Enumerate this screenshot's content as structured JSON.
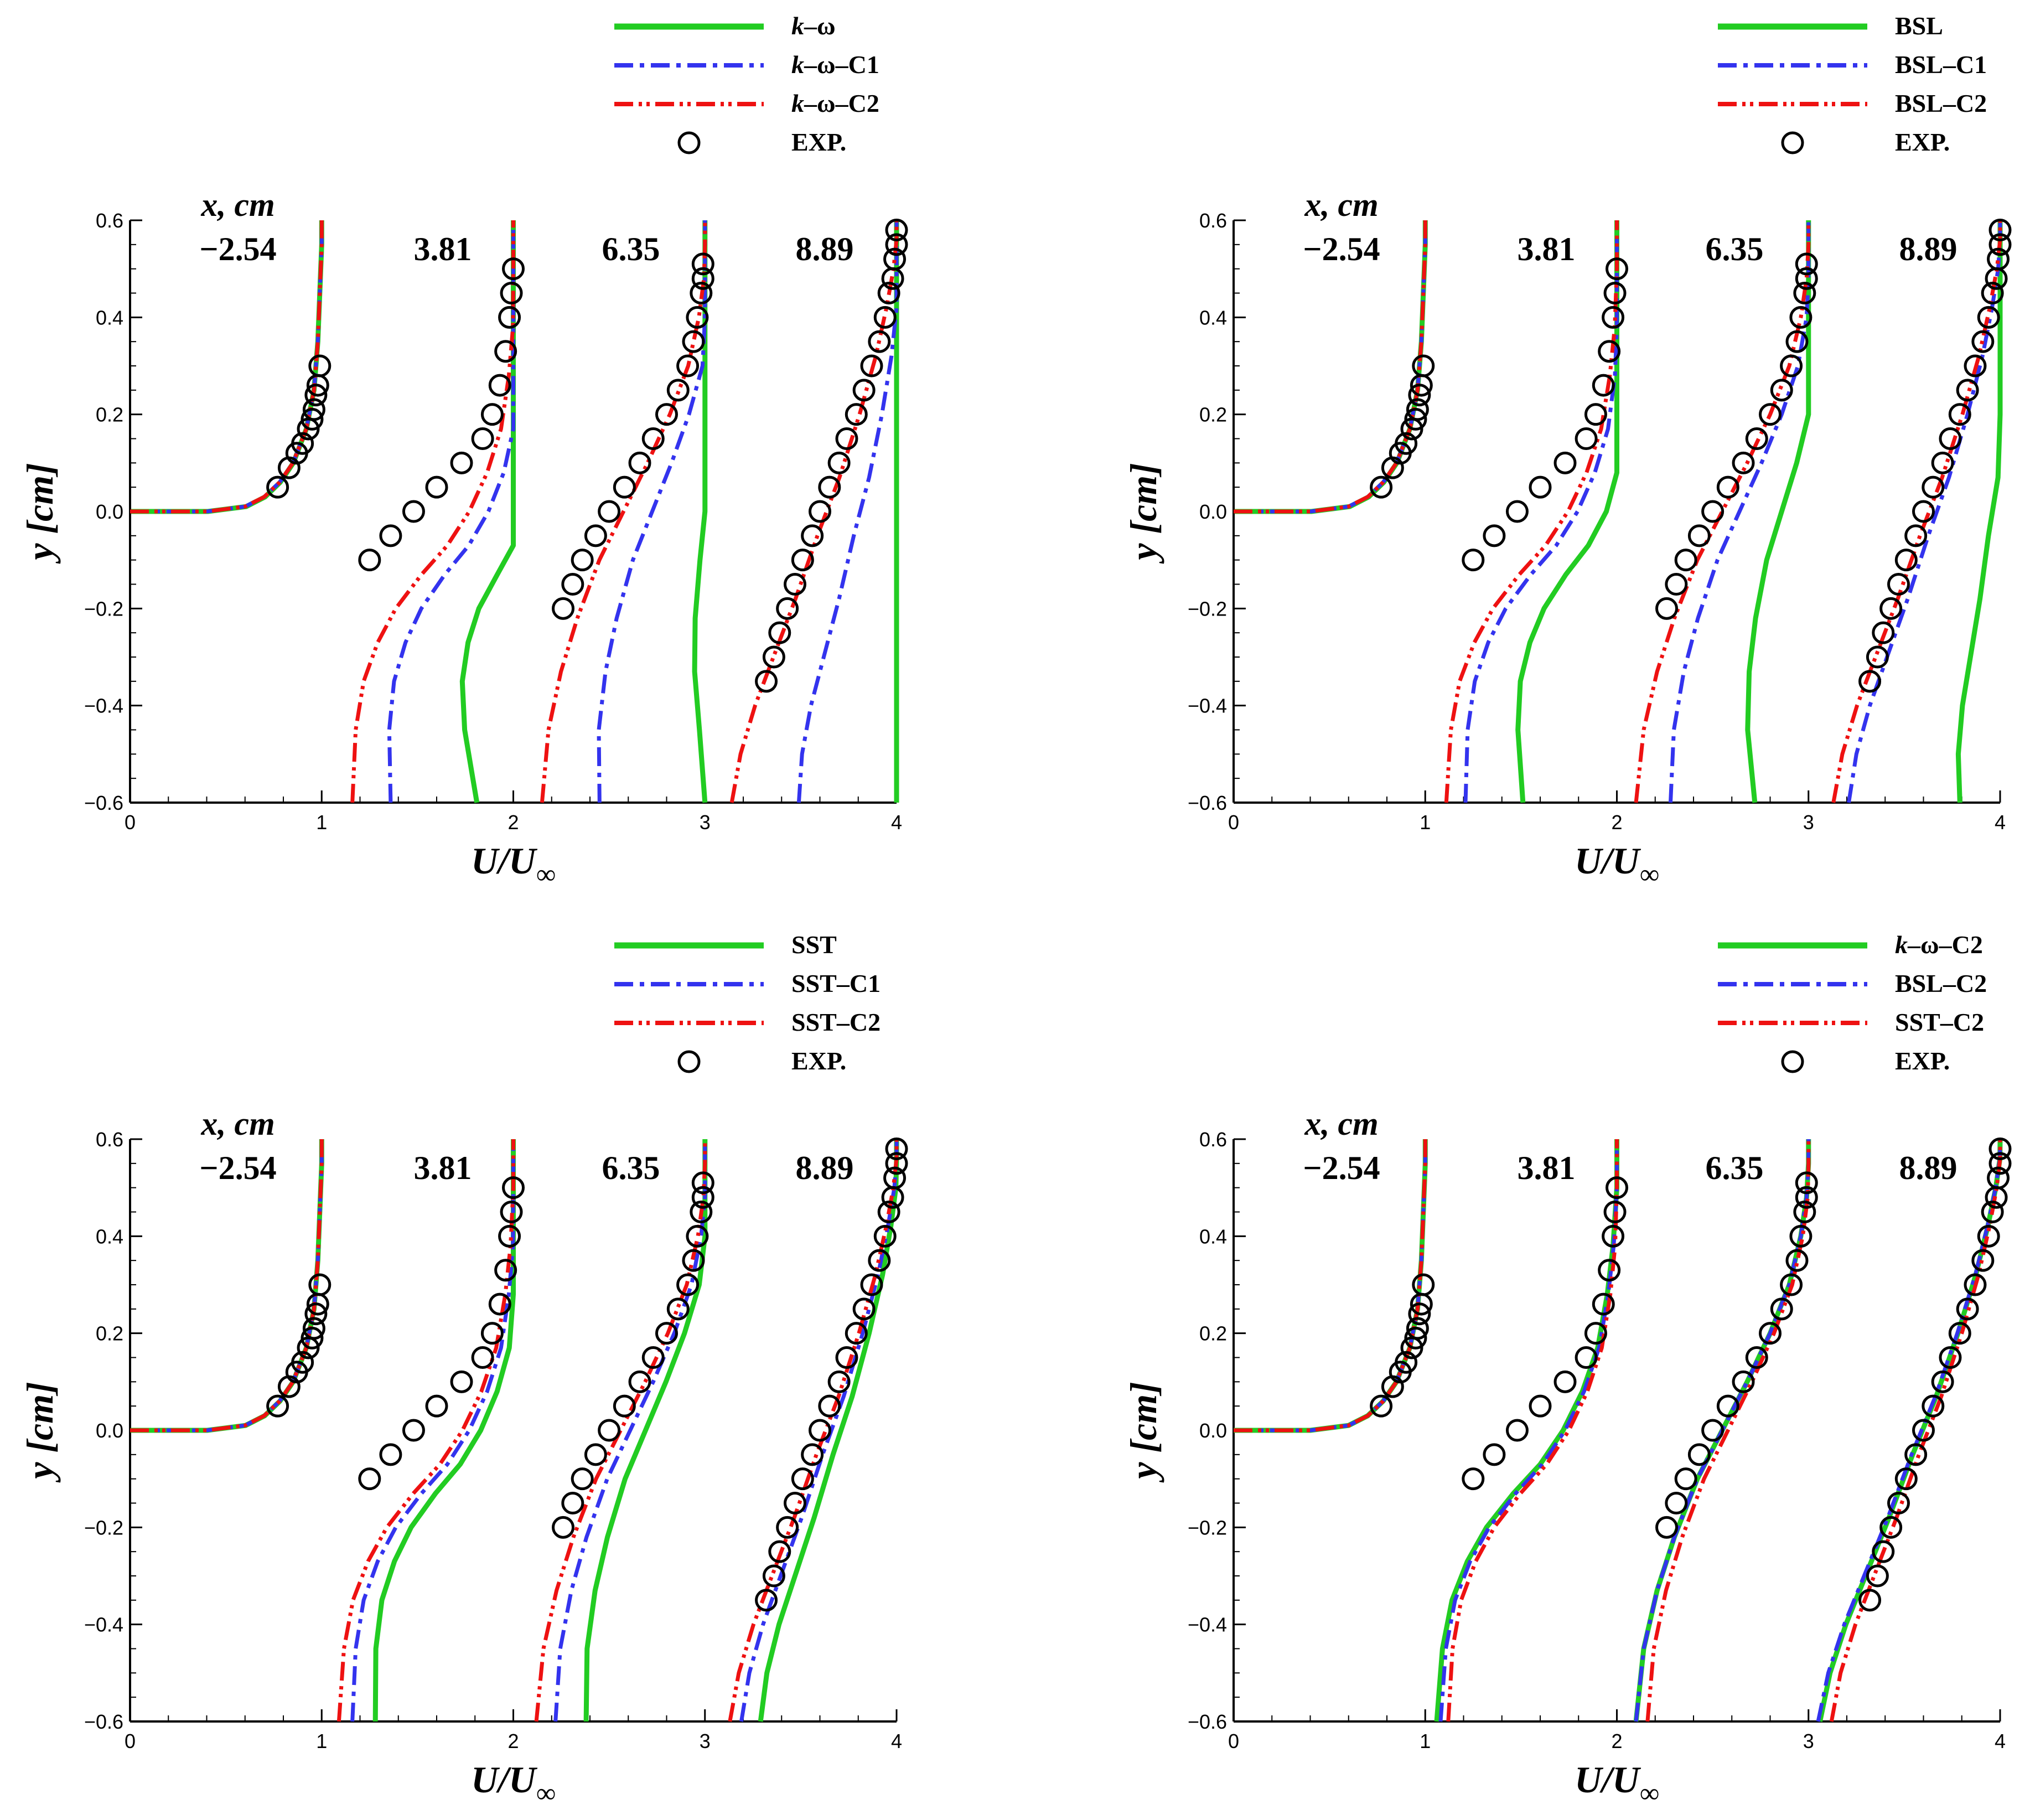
{
  "chart_data": [
    {
      "type": "line",
      "panel": "top-left",
      "legend": [
        {
          "label_main": "k",
          "label_rest": "–ω",
          "italic_prefix": true,
          "series": "green"
        },
        {
          "label_main": "k",
          "label_rest": "–ω–C1",
          "italic_prefix": true,
          "series": "blue"
        },
        {
          "label_main": "k",
          "label_rest": "–ω–C2",
          "italic_prefix": true,
          "series": "red"
        },
        {
          "label_main": "",
          "label_rest": "EXP.",
          "italic_prefix": false,
          "series": "exp"
        }
      ],
      "xlabel_main": "U/U",
      "xlabel_sub": "∞",
      "ylabel_main": "y",
      "ylabel_rest": "[cm]",
      "xlim": [
        0,
        4
      ],
      "ylim": [
        -0.6,
        0.6
      ],
      "xticks": [
        "0",
        "1",
        "2",
        "3",
        "4"
      ],
      "yticks": [
        "−0.6",
        "−0.4",
        "−0.2",
        "0.0",
        "0.2",
        "0.4",
        "0.6"
      ],
      "station_title": "x, cm",
      "stations": [
        "−2.54",
        "3.81",
        "6.35",
        "8.89"
      ],
      "series_delta": {
        "green": [
          0.02,
          0.75,
          0.95,
          0.98
        ],
        "blue": [
          0,
          0.3,
          0.35,
          0.4
        ],
        "red": [
          0,
          0.1,
          0.05,
          0.05
        ]
      }
    },
    {
      "type": "line",
      "panel": "top-right",
      "legend": [
        {
          "label_main": "",
          "label_rest": "BSL",
          "italic_prefix": false,
          "series": "green"
        },
        {
          "label_main": "",
          "label_rest": "BSL–C1",
          "italic_prefix": false,
          "series": "blue"
        },
        {
          "label_main": "",
          "label_rest": "BSL–C2",
          "italic_prefix": false,
          "series": "red"
        },
        {
          "label_main": "",
          "label_rest": "EXP.",
          "italic_prefix": false,
          "series": "exp"
        }
      ],
      "xlabel_main": "U/U",
      "xlabel_sub": "∞",
      "ylabel_main": "y",
      "ylabel_rest": "[cm]",
      "xlim": [
        0,
        4
      ],
      "ylim": [
        -0.6,
        0.6
      ],
      "xticks": [
        "0",
        "1",
        "2",
        "3",
        "4"
      ],
      "yticks": [
        "−0.6",
        "−0.4",
        "−0.2",
        "0.0",
        "0.2",
        "0.4",
        "0.6"
      ],
      "station_title": "x, cm",
      "stations": [
        "−2.54",
        "3.81",
        "6.35",
        "8.89"
      ],
      "series_delta": {
        "green": [
          0.02,
          0.45,
          0.62,
          0.7
        ],
        "blue": [
          0,
          0.15,
          0.18,
          0.12
        ],
        "red": [
          0,
          0.05,
          0.0,
          0.04
        ]
      }
    },
    {
      "type": "line",
      "panel": "bottom-left",
      "legend": [
        {
          "label_main": "",
          "label_rest": "SST",
          "italic_prefix": false,
          "series": "green"
        },
        {
          "label_main": "",
          "label_rest": "SST–C1",
          "italic_prefix": false,
          "series": "blue"
        },
        {
          "label_main": "",
          "label_rest": "SST–C2",
          "italic_prefix": false,
          "series": "red"
        },
        {
          "label_main": "",
          "label_rest": "EXP.",
          "italic_prefix": false,
          "series": "exp"
        }
      ],
      "xlabel_main": "U/U",
      "xlabel_sub": "∞",
      "ylabel_main": "y",
      "ylabel_rest": "[cm]",
      "xlim": [
        0,
        4
      ],
      "ylim": [
        -0.6,
        0.6
      ],
      "xticks": [
        "0",
        "1",
        "2",
        "3",
        "4"
      ],
      "yticks": [
        "−0.6",
        "−0.4",
        "−0.2",
        "0.0",
        "0.2",
        "0.4",
        "0.6"
      ],
      "station_title": "x, cm",
      "stations": [
        "−2.54",
        "3.81",
        "6.35",
        "8.89"
      ],
      "series_delta": {
        "green": [
          0.01,
          0.22,
          0.28,
          0.2
        ],
        "blue": [
          0,
          0.1,
          0.12,
          0.1
        ],
        "red": [
          0,
          0.03,
          0.02,
          0.04
        ]
      }
    },
    {
      "type": "line",
      "panel": "bottom-right",
      "legend": [
        {
          "label_main": "k",
          "label_rest": "–ω–C2",
          "italic_prefix": true,
          "series": "green"
        },
        {
          "label_main": "",
          "label_rest": "BSL–C2",
          "italic_prefix": false,
          "series": "blue"
        },
        {
          "label_main": "",
          "label_rest": "SST–C2",
          "italic_prefix": false,
          "series": "red"
        },
        {
          "label_main": "",
          "label_rest": "EXP.",
          "italic_prefix": false,
          "series": "exp"
        }
      ],
      "xlabel_main": "U/U",
      "xlabel_sub": "∞",
      "ylabel_main": "y",
      "ylabel_rest": "[cm]",
      "xlim": [
        0,
        4
      ],
      "ylim": [
        -0.6,
        0.6
      ],
      "xticks": [
        "0",
        "1",
        "2",
        "3",
        "4"
      ],
      "yticks": [
        "−0.6",
        "−0.4",
        "−0.2",
        "0.0",
        "0.2",
        "0.4",
        "0.6"
      ],
      "station_title": "x, cm",
      "stations": [
        "−2.54",
        "3.81",
        "6.35",
        "8.89"
      ],
      "series_delta": {
        "green": [
          0,
          0.0,
          0.0,
          -0.03
        ],
        "blue": [
          0,
          0.02,
          0.0,
          -0.04
        ],
        "red": [
          0,
          0.06,
          0.06,
          0.03
        ]
      }
    }
  ],
  "profiles": {
    "station0": {
      "x": [
        0.0,
        0.4,
        0.6,
        0.7,
        0.78,
        0.85,
        0.92,
        0.96,
        0.98,
        0.99,
        1.0,
        1.0
      ],
      "y": [
        0.0,
        0.0,
        0.01,
        0.03,
        0.06,
        0.1,
        0.17,
        0.25,
        0.35,
        0.45,
        0.55,
        0.6
      ]
    },
    "station1": {
      "x": [
        1.06,
        1.09,
        1.14,
        1.22,
        1.32,
        1.46,
        1.6,
        1.72,
        1.82,
        1.9,
        1.95,
        1.98,
        2.0,
        2.0
      ],
      "y": [
        -0.6,
        -0.45,
        -0.35,
        -0.27,
        -0.2,
        -0.13,
        -0.07,
        0.0,
        0.08,
        0.17,
        0.28,
        0.38,
        0.5,
        0.6
      ]
    },
    "station2": {
      "x": [
        2.1,
        2.14,
        2.21,
        2.3,
        2.42,
        2.55,
        2.68,
        2.8,
        2.9,
        2.96,
        2.99,
        3.0,
        3.0
      ],
      "y": [
        -0.6,
        -0.45,
        -0.33,
        -0.22,
        -0.1,
        0.0,
        0.1,
        0.2,
        0.3,
        0.4,
        0.48,
        0.55,
        0.6
      ]
    },
    "station3": {
      "x": [
        3.09,
        3.14,
        3.22,
        3.32,
        3.44,
        3.56,
        3.68,
        3.79,
        3.88,
        3.94,
        3.98,
        4.0,
        4.0
      ],
      "y": [
        -0.6,
        -0.5,
        -0.4,
        -0.3,
        -0.18,
        -0.05,
        0.07,
        0.2,
        0.32,
        0.42,
        0.5,
        0.56,
        0.6
      ]
    }
  },
  "experiment": {
    "station0": {
      "x": [
        0.77,
        0.83,
        0.87,
        0.9,
        0.93,
        0.95,
        0.96,
        0.97,
        0.98,
        0.99
      ],
      "y": [
        0.05,
        0.09,
        0.12,
        0.14,
        0.17,
        0.19,
        0.21,
        0.24,
        0.26,
        0.3
      ]
    },
    "station1": {
      "x": [
        1.25,
        1.36,
        1.48,
        1.6,
        1.73,
        1.84,
        1.89,
        1.93,
        1.96,
        1.98,
        1.99,
        2.0
      ],
      "y": [
        -0.1,
        -0.05,
        0.0,
        0.05,
        0.1,
        0.15,
        0.2,
        0.26,
        0.33,
        0.4,
        0.45,
        0.5
      ]
    },
    "station2": {
      "x": [
        2.26,
        2.31,
        2.36,
        2.43,
        2.5,
        2.58,
        2.66,
        2.73,
        2.8,
        2.86,
        2.91,
        2.94,
        2.96,
        2.98,
        2.99,
        2.99
      ],
      "y": [
        -0.2,
        -0.15,
        -0.1,
        -0.05,
        0.0,
        0.05,
        0.1,
        0.15,
        0.2,
        0.25,
        0.3,
        0.35,
        0.4,
        0.45,
        0.48,
        0.51
      ]
    },
    "station3": {
      "x": [
        3.32,
        3.36,
        3.39,
        3.43,
        3.47,
        3.51,
        3.56,
        3.6,
        3.65,
        3.7,
        3.74,
        3.79,
        3.83,
        3.87,
        3.91,
        3.94,
        3.96,
        3.98,
        3.99,
        4.0,
        4.0
      ],
      "y": [
        -0.35,
        -0.3,
        -0.25,
        -0.2,
        -0.15,
        -0.1,
        -0.05,
        0.0,
        0.05,
        0.1,
        0.15,
        0.2,
        0.25,
        0.3,
        0.35,
        0.4,
        0.45,
        0.48,
        0.52,
        0.55,
        0.58
      ]
    }
  },
  "colors": {
    "green": "#22cc22",
    "blue": "#3333ee",
    "red": "#ee1111",
    "exp": "#000000",
    "axis": "#000000"
  }
}
